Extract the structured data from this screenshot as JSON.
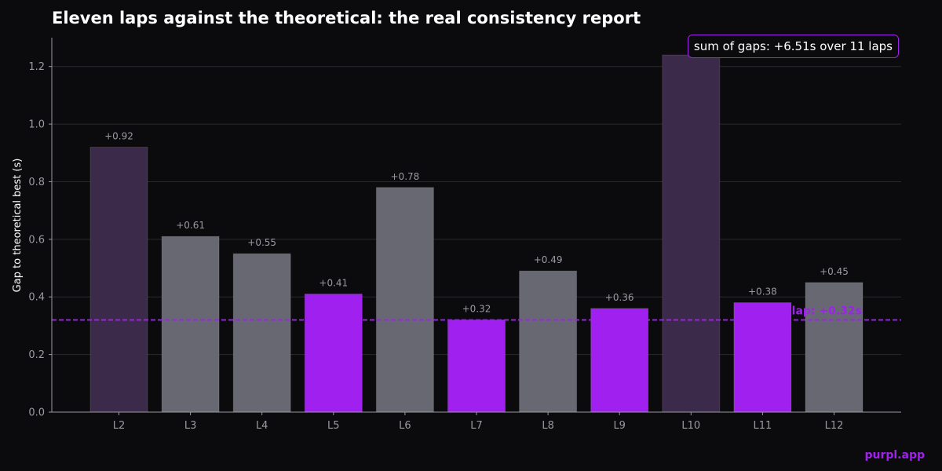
{
  "chart_data": {
    "type": "bar",
    "title": "Eleven laps against the theoretical: the real consistency report",
    "ylabel": "Gap to theoretical best (s)",
    "xlabel": "",
    "ylim": [
      0,
      1.3
    ],
    "yticks": [
      0.0,
      0.2,
      0.4,
      0.6,
      0.8,
      1.0,
      1.2
    ],
    "ytick_labels": [
      "0.0",
      "0.2",
      "0.4",
      "0.6",
      "0.8",
      "1.0",
      "1.2"
    ],
    "grid": true,
    "categories": [
      "L2",
      "L3",
      "L4",
      "L5",
      "L6",
      "L7",
      "L8",
      "L9",
      "L10",
      "L11",
      "L12"
    ],
    "values": [
      0.92,
      0.61,
      0.55,
      0.41,
      0.78,
      0.32,
      0.49,
      0.36,
      1.24,
      0.38,
      0.45
    ],
    "value_labels": [
      "+0.92",
      "+0.61",
      "+0.55",
      "+0.41",
      "+0.78",
      "+0.32",
      "+0.49",
      "+0.36",
      "",
      "+0.38",
      "+0.45"
    ],
    "bar_groups": [
      "worst",
      "normal",
      "normal",
      "best",
      "normal",
      "best",
      "normal",
      "best",
      "worst",
      "best",
      "normal"
    ],
    "reference_line": {
      "value": 0.32,
      "label": "lap: +0.32s"
    },
    "annotation": "sum of gaps: +6.51s over 11 laps"
  },
  "colors": {
    "background": "#0b0b0d",
    "accent": "#a020f0",
    "best": "#a020f0",
    "normal": "#686872",
    "worst": "#3c2a4a",
    "grid": "#2a2a2e",
    "axis_text": "#9a9aa2",
    "value_label": "#9a9aa2"
  },
  "brand": "purpl.app"
}
